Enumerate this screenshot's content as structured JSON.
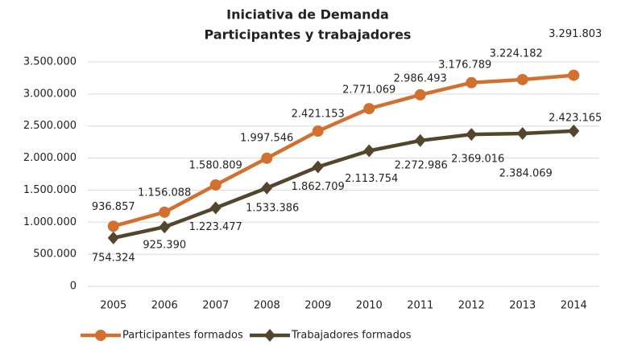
{
  "chart_data": {
    "type": "line",
    "title_lines": [
      "Iniciativa de Demanda",
      "Participantes y trabajadores"
    ],
    "categories": [
      "2005",
      "2006",
      "2007",
      "2008",
      "2009",
      "2010",
      "2011",
      "2012",
      "2013",
      "2014"
    ],
    "series": [
      {
        "name": "Participantes formados",
        "color": "#d2712f",
        "marker": "circle",
        "values": [
          936857,
          1156088,
          1580809,
          1997546,
          2421153,
          2771069,
          2986493,
          3176789,
          3224182,
          3291803
        ],
        "value_labels": [
          "936.857",
          "1.156.088",
          "1.580.809",
          "1.997.546",
          "2.421.153",
          "2.771.069",
          "2.986.493",
          "3.176.789",
          "3.224.182",
          "3.291.803"
        ]
      },
      {
        "name": "Trabajadores formados",
        "color": "#54452d",
        "marker": "diamond",
        "values": [
          754324,
          925390,
          1223477,
          1533386,
          1862709,
          2113754,
          2272986,
          2369016,
          2384069,
          2423165
        ],
        "value_labels": [
          "754.324",
          "925.390",
          "1.223.477",
          "1.533.386",
          "1.862.709",
          "2.113.754",
          "2.272.986",
          "2.369.016",
          "2.384.069",
          "2.423.165"
        ]
      }
    ],
    "ylim": [
      0,
      3500000
    ],
    "yticks": [
      0,
      {
        "value": 500000,
        "label": "500.000"
      },
      {
        "value": 1000000,
        "label": "1.000.000"
      },
      {
        "value": 1500000,
        "label": "1.500.000"
      },
      {
        "value": 2000000,
        "label": "2.000.000"
      },
      {
        "value": 2500000,
        "label": "2.500.000"
      },
      {
        "value": 3000000,
        "label": "3.000.000"
      },
      {
        "value": 3500000,
        "label": "3.500.000"
      }
    ],
    "grid": true,
    "legend": "bottom"
  }
}
